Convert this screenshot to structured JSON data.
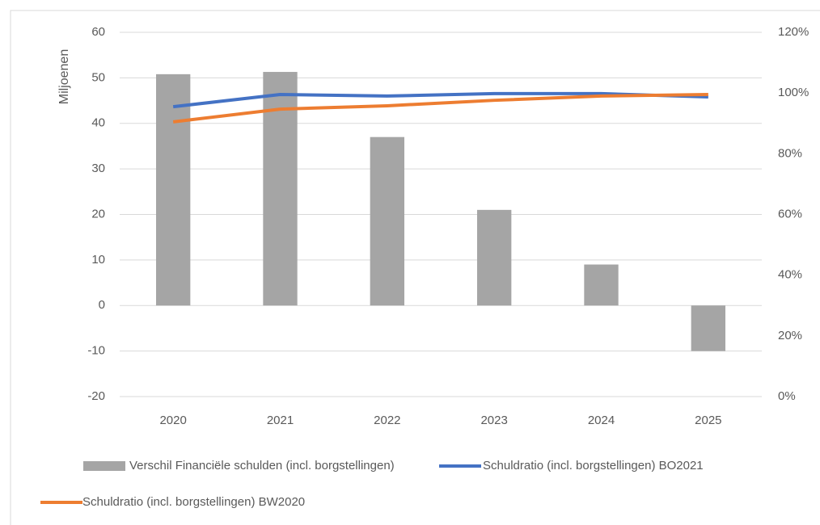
{
  "chart_data": {
    "type": "combo",
    "y_label": "Miljoenen",
    "categories": [
      "2020",
      "2021",
      "2022",
      "2023",
      "2024",
      "2025"
    ],
    "series": [
      {
        "name": "Verschil Financiële schulden (incl. borgstellingen)",
        "type": "bar",
        "color": "#a5a5a5",
        "values": [
          50.8,
          51.3,
          37,
          21,
          9,
          -10
        ]
      },
      {
        "name": "Schuldratio (incl. borgstellingen) BO2021",
        "type": "line",
        "axis": "y2",
        "color": "#4472c4",
        "values": [
          95.5,
          99.5,
          99,
          99.8,
          99.8,
          98.7
        ]
      },
      {
        "name": "Schuldratio (incl. borgstellingen) BW2020",
        "type": "line",
        "axis": "y2",
        "color": "#ed7d31",
        "values": [
          90.5,
          94.7,
          95.8,
          97.6,
          99,
          99.5
        ]
      }
    ],
    "ylim": [
      -20,
      60
    ],
    "yticks": [
      -20,
      -10,
      0,
      10,
      20,
      30,
      40,
      50,
      60
    ],
    "y2lim": [
      0,
      120
    ],
    "y2ticks": [
      {
        "value": 0,
        "label": "0%"
      },
      {
        "value": 20,
        "label": "20%"
      },
      {
        "value": 40,
        "label": "40%"
      },
      {
        "value": 60,
        "label": "60%"
      },
      {
        "value": 80,
        "label": "80%"
      },
      {
        "value": 100,
        "label": "100%"
      },
      {
        "value": 120,
        "label": "120%"
      }
    ],
    "grid": true
  }
}
